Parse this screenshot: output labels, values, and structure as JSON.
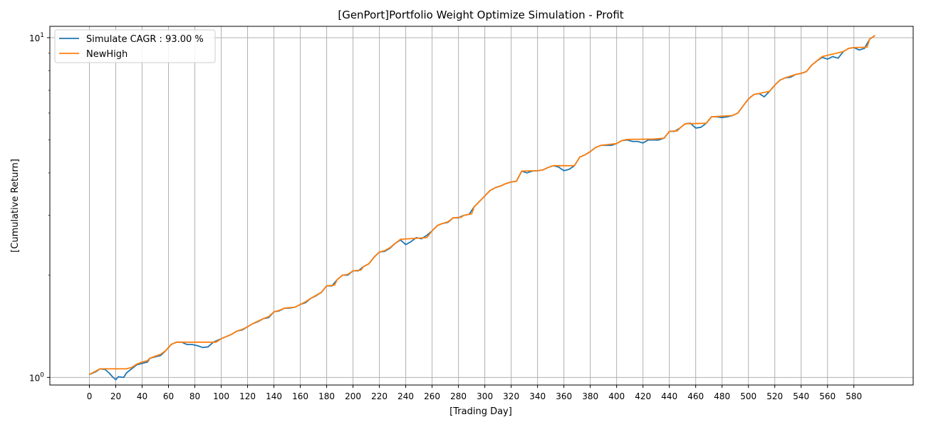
{
  "chart_data": {
    "type": "line",
    "title": "[GenPort]Portfolio Weight Optimize Simulation - Profit",
    "xlabel": "[Trading Day]",
    "ylabel": "[Cumulative Return]",
    "yscale": "log",
    "xlim": [
      -30,
      625
    ],
    "ylim": [
      0.95,
      10.8
    ],
    "x_ticks": [
      0,
      20,
      40,
      60,
      80,
      100,
      120,
      140,
      160,
      180,
      200,
      220,
      240,
      260,
      280,
      300,
      320,
      340,
      360,
      380,
      400,
      420,
      440,
      460,
      480,
      500,
      520,
      540,
      560,
      580
    ],
    "y_ticks": [
      {
        "value": 1,
        "base": "10",
        "exp": "0"
      },
      {
        "value": 10,
        "base": "10",
        "exp": "1"
      }
    ],
    "grid": true,
    "legend_position": "top-left",
    "series": [
      {
        "name": "Simulate CAGR : 93.00 %",
        "color": "#1f77b4",
        "points": [
          [
            0,
            1.02
          ],
          [
            5,
            1.04
          ],
          [
            8,
            1.06
          ],
          [
            12,
            1.055
          ],
          [
            15,
            1.03
          ],
          [
            18,
            1.0
          ],
          [
            20,
            0.985
          ],
          [
            22,
            1.005
          ],
          [
            26,
            1.0
          ],
          [
            28,
            1.03
          ],
          [
            32,
            1.06
          ],
          [
            36,
            1.09
          ],
          [
            40,
            1.1
          ],
          [
            44,
            1.11
          ],
          [
            46,
            1.14
          ],
          [
            50,
            1.15
          ],
          [
            54,
            1.16
          ],
          [
            58,
            1.2
          ],
          [
            62,
            1.25
          ],
          [
            66,
            1.27
          ],
          [
            70,
            1.27
          ],
          [
            74,
            1.25
          ],
          [
            78,
            1.25
          ],
          [
            82,
            1.24
          ],
          [
            86,
            1.225
          ],
          [
            90,
            1.23
          ],
          [
            94,
            1.27
          ],
          [
            96,
            1.28
          ],
          [
            100,
            1.3
          ],
          [
            104,
            1.32
          ],
          [
            108,
            1.34
          ],
          [
            112,
            1.37
          ],
          [
            116,
            1.38
          ],
          [
            120,
            1.41
          ],
          [
            124,
            1.44
          ],
          [
            128,
            1.46
          ],
          [
            132,
            1.49
          ],
          [
            136,
            1.5
          ],
          [
            140,
            1.56
          ],
          [
            144,
            1.57
          ],
          [
            148,
            1.6
          ],
          [
            152,
            1.6
          ],
          [
            156,
            1.61
          ],
          [
            160,
            1.64
          ],
          [
            164,
            1.66
          ],
          [
            168,
            1.71
          ],
          [
            172,
            1.74
          ],
          [
            176,
            1.78
          ],
          [
            180,
            1.86
          ],
          [
            184,
            1.86
          ],
          [
            188,
            1.94
          ],
          [
            192,
            2.0
          ],
          [
            196,
            2.0
          ],
          [
            200,
            2.06
          ],
          [
            204,
            2.06
          ],
          [
            208,
            2.12
          ],
          [
            212,
            2.16
          ],
          [
            216,
            2.26
          ],
          [
            220,
            2.34
          ],
          [
            224,
            2.35
          ],
          [
            228,
            2.4
          ],
          [
            232,
            2.48
          ],
          [
            236,
            2.54
          ],
          [
            240,
            2.46
          ],
          [
            244,
            2.51
          ],
          [
            248,
            2.58
          ],
          [
            252,
            2.56
          ],
          [
            256,
            2.62
          ],
          [
            260,
            2.7
          ],
          [
            264,
            2.8
          ],
          [
            268,
            2.84
          ],
          [
            272,
            2.86
          ],
          [
            276,
            2.95
          ],
          [
            280,
            2.95
          ],
          [
            284,
            3.0
          ],
          [
            288,
            3.02
          ],
          [
            292,
            3.18
          ],
          [
            296,
            3.3
          ],
          [
            300,
            3.42
          ],
          [
            304,
            3.55
          ],
          [
            308,
            3.62
          ],
          [
            312,
            3.66
          ],
          [
            316,
            3.72
          ],
          [
            320,
            3.76
          ],
          [
            324,
            3.78
          ],
          [
            328,
            4.05
          ],
          [
            332,
            4.0
          ],
          [
            336,
            4.05
          ],
          [
            340,
            4.06
          ],
          [
            344,
            4.08
          ],
          [
            348,
            4.15
          ],
          [
            352,
            4.2
          ],
          [
            356,
            4.16
          ],
          [
            360,
            4.06
          ],
          [
            364,
            4.1
          ],
          [
            368,
            4.2
          ],
          [
            372,
            4.45
          ],
          [
            376,
            4.52
          ],
          [
            380,
            4.62
          ],
          [
            384,
            4.75
          ],
          [
            388,
            4.82
          ],
          [
            392,
            4.82
          ],
          [
            396,
            4.82
          ],
          [
            400,
            4.88
          ],
          [
            404,
            4.98
          ],
          [
            408,
            5.0
          ],
          [
            412,
            4.95
          ],
          [
            416,
            4.95
          ],
          [
            420,
            4.9
          ],
          [
            424,
            5.0
          ],
          [
            428,
            5.0
          ],
          [
            432,
            5.0
          ],
          [
            436,
            5.06
          ],
          [
            440,
            5.3
          ],
          [
            444,
            5.3
          ],
          [
            448,
            5.42
          ],
          [
            452,
            5.58
          ],
          [
            456,
            5.6
          ],
          [
            460,
            5.42
          ],
          [
            464,
            5.45
          ],
          [
            468,
            5.6
          ],
          [
            472,
            5.85
          ],
          [
            476,
            5.85
          ],
          [
            480,
            5.82
          ],
          [
            484,
            5.85
          ],
          [
            488,
            5.9
          ],
          [
            492,
            6.0
          ],
          [
            496,
            6.3
          ],
          [
            500,
            6.6
          ],
          [
            504,
            6.8
          ],
          [
            508,
            6.85
          ],
          [
            512,
            6.7
          ],
          [
            516,
            6.95
          ],
          [
            520,
            7.25
          ],
          [
            524,
            7.5
          ],
          [
            528,
            7.62
          ],
          [
            532,
            7.65
          ],
          [
            536,
            7.8
          ],
          [
            540,
            7.85
          ],
          [
            544,
            7.95
          ],
          [
            548,
            8.3
          ],
          [
            552,
            8.55
          ],
          [
            556,
            8.75
          ],
          [
            560,
            8.65
          ],
          [
            564,
            8.8
          ],
          [
            568,
            8.7
          ],
          [
            572,
            9.1
          ],
          [
            576,
            9.3
          ],
          [
            580,
            9.35
          ],
          [
            584,
            9.2
          ],
          [
            588,
            9.3
          ],
          [
            592,
            9.9
          ],
          [
            596,
            10.15
          ]
        ]
      },
      {
        "name": "NewHigh",
        "color": "#ff7f0e",
        "points": [
          [
            0,
            1.02
          ],
          [
            5,
            1.045
          ],
          [
            8,
            1.06
          ],
          [
            28,
            1.06
          ],
          [
            32,
            1.07
          ],
          [
            36,
            1.095
          ],
          [
            40,
            1.11
          ],
          [
            44,
            1.12
          ],
          [
            46,
            1.14
          ],
          [
            50,
            1.155
          ],
          [
            54,
            1.17
          ],
          [
            58,
            1.2
          ],
          [
            62,
            1.25
          ],
          [
            66,
            1.27
          ],
          [
            96,
            1.27
          ],
          [
            100,
            1.3
          ],
          [
            104,
            1.32
          ],
          [
            108,
            1.34
          ],
          [
            112,
            1.37
          ],
          [
            116,
            1.385
          ],
          [
            120,
            1.41
          ],
          [
            124,
            1.44
          ],
          [
            128,
            1.465
          ],
          [
            132,
            1.49
          ],
          [
            136,
            1.51
          ],
          [
            140,
            1.56
          ],
          [
            144,
            1.575
          ],
          [
            148,
            1.6
          ],
          [
            156,
            1.61
          ],
          [
            160,
            1.64
          ],
          [
            164,
            1.67
          ],
          [
            168,
            1.71
          ],
          [
            172,
            1.745
          ],
          [
            176,
            1.78
          ],
          [
            180,
            1.86
          ],
          [
            186,
            1.87
          ],
          [
            188,
            1.94
          ],
          [
            192,
            2.0
          ],
          [
            196,
            2.01
          ],
          [
            200,
            2.06
          ],
          [
            206,
            2.07
          ],
          [
            208,
            2.12
          ],
          [
            212,
            2.16
          ],
          [
            216,
            2.26
          ],
          [
            220,
            2.34
          ],
          [
            224,
            2.36
          ],
          [
            228,
            2.41
          ],
          [
            232,
            2.48
          ],
          [
            236,
            2.55
          ],
          [
            256,
            2.58
          ],
          [
            260,
            2.7
          ],
          [
            264,
            2.8
          ],
          [
            268,
            2.84
          ],
          [
            272,
            2.87
          ],
          [
            276,
            2.95
          ],
          [
            282,
            2.96
          ],
          [
            284,
            3.0
          ],
          [
            290,
            3.03
          ],
          [
            292,
            3.18
          ],
          [
            296,
            3.3
          ],
          [
            300,
            3.42
          ],
          [
            304,
            3.55
          ],
          [
            308,
            3.62
          ],
          [
            312,
            3.66
          ],
          [
            316,
            3.72
          ],
          [
            320,
            3.76
          ],
          [
            324,
            3.78
          ],
          [
            328,
            4.05
          ],
          [
            340,
            4.06
          ],
          [
            344,
            4.08
          ],
          [
            348,
            4.15
          ],
          [
            352,
            4.2
          ],
          [
            368,
            4.2
          ],
          [
            372,
            4.45
          ],
          [
            376,
            4.52
          ],
          [
            380,
            4.62
          ],
          [
            384,
            4.75
          ],
          [
            388,
            4.82
          ],
          [
            400,
            4.88
          ],
          [
            404,
            4.98
          ],
          [
            408,
            5.02
          ],
          [
            428,
            5.03
          ],
          [
            436,
            5.06
          ],
          [
            440,
            5.3
          ],
          [
            446,
            5.32
          ],
          [
            448,
            5.42
          ],
          [
            452,
            5.58
          ],
          [
            468,
            5.6
          ],
          [
            472,
            5.85
          ],
          [
            488,
            5.9
          ],
          [
            492,
            6.0
          ],
          [
            496,
            6.3
          ],
          [
            500,
            6.6
          ],
          [
            504,
            6.8
          ],
          [
            516,
            6.95
          ],
          [
            520,
            7.25
          ],
          [
            524,
            7.5
          ],
          [
            528,
            7.62
          ],
          [
            536,
            7.8
          ],
          [
            540,
            7.85
          ],
          [
            544,
            7.95
          ],
          [
            548,
            8.3
          ],
          [
            552,
            8.55
          ],
          [
            556,
            8.8
          ],
          [
            572,
            9.1
          ],
          [
            576,
            9.3
          ],
          [
            580,
            9.35
          ],
          [
            590,
            9.38
          ],
          [
            592,
            9.9
          ],
          [
            596,
            10.15
          ]
        ]
      }
    ]
  }
}
